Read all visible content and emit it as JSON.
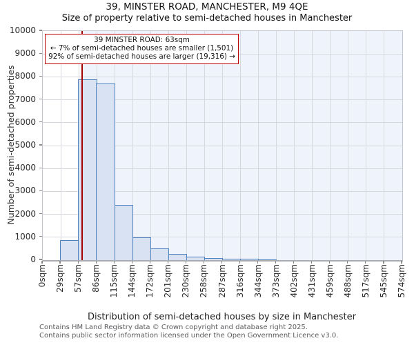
{
  "title": "39, MINSTER ROAD, MANCHESTER, M9 4QE",
  "subtitle": "Size of property relative to semi-detached houses in Manchester",
  "annotation": {
    "title": "39 MINSTER ROAD: 63sqm",
    "smaller": "← 7% of semi-detached houses are smaller (1,501)",
    "larger": "92% of semi-detached houses are larger (19,316) →"
  },
  "chart_data": {
    "type": "bar",
    "title": "39, MINSTER ROAD, MANCHESTER, M9 4QE",
    "subtitle": "Size of property relative to semi-detached houses in Manchester",
    "xlabel": "Distribution of semi-detached houses by size in Manchester",
    "ylabel": "Number of semi-detached properties",
    "ylim": [
      0,
      10000
    ],
    "ytick_step": 1000,
    "grid": true,
    "x_tick_labels": [
      "0sqm",
      "29sqm",
      "57sqm",
      "86sqm",
      "115sqm",
      "144sqm",
      "172sqm",
      "201sqm",
      "230sqm",
      "258sqm",
      "287sqm",
      "316sqm",
      "344sqm",
      "373sqm",
      "402sqm",
      "431sqm",
      "459sqm",
      "488sqm",
      "517sqm",
      "545sqm",
      "574sqm"
    ],
    "bin_edges_sqm": [
      0,
      29,
      57,
      86,
      115,
      144,
      172,
      201,
      230,
      258,
      287,
      316,
      344,
      373,
      402,
      431,
      459,
      488,
      517,
      545,
      574
    ],
    "values": [
      0,
      870,
      7900,
      7720,
      2400,
      1000,
      520,
      270,
      150,
      100,
      75,
      50,
      25,
      0,
      0,
      0,
      0,
      0,
      0,
      0
    ],
    "marker": {
      "label": "39 MINSTER ROAD",
      "value_sqm": 63,
      "axis_max_sqm": 574
    }
  },
  "footer": {
    "line1": "Contains HM Land Registry data © Crown copyright and database right 2025.",
    "line2": "Contains public sector information licensed under the Open Government Licence v3.0."
  },
  "colors": {
    "bar_fill": "#d8e2f3",
    "bar_border": "#4f81bd",
    "marker_line": "#a40000",
    "annotation_border": "#c00000",
    "shade_larger_region": "#eff3fb",
    "grid": "#d7d8de",
    "tick_text": "#2b2b2b"
  }
}
